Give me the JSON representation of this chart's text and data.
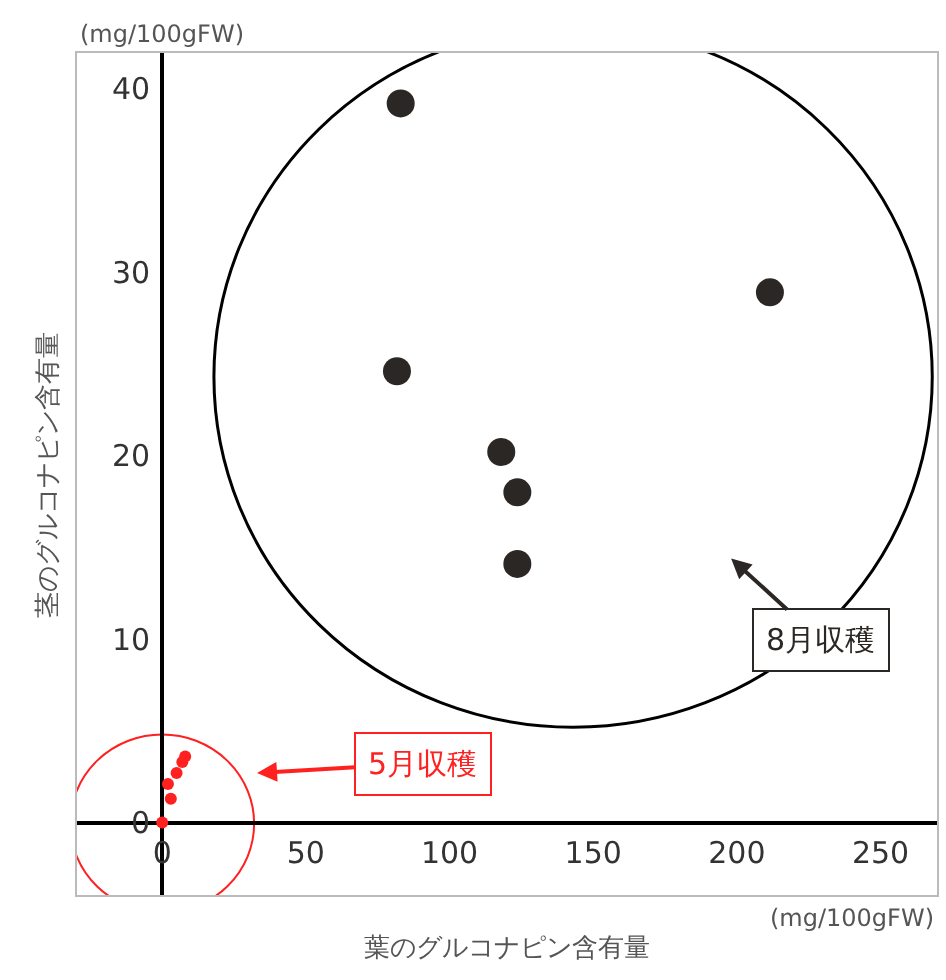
{
  "chart_data": {
    "type": "scatter",
    "xlabel": "葉のグルコナピン含有量",
    "ylabel": "茎のグルコナピン含有量",
    "series": [
      {
        "color": "#2b2724",
        "x": [
          83,
          211.5,
          81.7,
          118,
          123.6,
          123.6
        ],
        "values": [
          39.2,
          28.9,
          24.6,
          20.2,
          18.0,
          14.1
        ]
      },
      {
        "color": "#ff2020",
        "x": [
          0,
          3,
          2,
          5,
          7,
          8
        ],
        "values": [
          0,
          1.3,
          2.1,
          2.7,
          3.3,
          3.6
        ]
      }
    ],
    "annotations": [
      "(mg/100gFW)",
      "(mg/100gFW)",
      "8月収穫",
      "5月収穫"
    ],
    "xlim": [
      -30,
      270
    ],
    "ylim": [
      -4,
      42
    ],
    "xticks": [
      0,
      50,
      100,
      150,
      200,
      250
    ],
    "yticks": [
      0,
      10,
      20,
      30,
      40
    ],
    "marker": "circle",
    "grid": false,
    "legend": false
  }
}
